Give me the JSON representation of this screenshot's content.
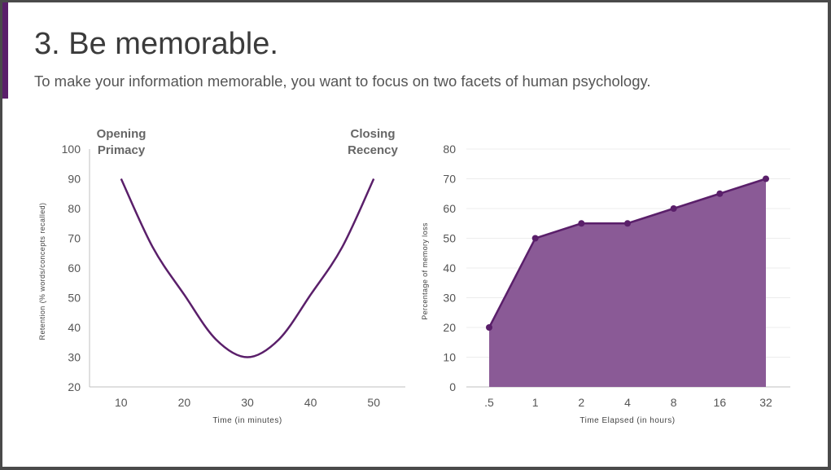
{
  "slide": {
    "title": "3. Be memorable.",
    "subtitle": "To make your information memorable, you want to focus on two facets of human psychology."
  },
  "colors": {
    "accent": "#5a1f6a",
    "line": "#5a1f6a",
    "area_fill": "#8a5a96",
    "axis": "#bfbfbf",
    "grid": "#ececec",
    "tick_text": "#555555",
    "background": "#ffffff"
  },
  "chart_data": [
    {
      "type": "line",
      "title": "",
      "xlabel": "Time (in minutes)",
      "ylabel": "Retention (% words/concepts recalled)",
      "x": [
        10,
        15,
        20,
        25,
        30,
        35,
        40,
        45,
        50
      ],
      "y": [
        90,
        67,
        51,
        36,
        30,
        36,
        51,
        67,
        90
      ],
      "xticks": [
        "10",
        "20",
        "30",
        "40",
        "50"
      ],
      "xtick_values": [
        10,
        20,
        30,
        40,
        50
      ],
      "yticks": [
        "100",
        "90",
        "80",
        "70",
        "60",
        "50",
        "40",
        "30",
        "20"
      ],
      "ytick_values": [
        100,
        90,
        80,
        70,
        60,
        50,
        40,
        30,
        20
      ],
      "xlim": [
        5,
        55
      ],
      "ylim": [
        20,
        100
      ],
      "smooth": true,
      "grid": false,
      "annotations": [
        {
          "line1": "Opening",
          "line2": "Primacy"
        },
        {
          "line1": "Closing",
          "line2": "Recency"
        }
      ]
    },
    {
      "type": "area",
      "title": "",
      "xlabel": "Time Elapsed (in hours)",
      "ylabel": "Percentage of memory loss",
      "categories": [
        ".5",
        "1",
        "2",
        "4",
        "8",
        "16",
        "32"
      ],
      "values": [
        20,
        50,
        55,
        55,
        60,
        65,
        70
      ],
      "yticks": [
        "80",
        "70",
        "60",
        "50",
        "40",
        "30",
        "20",
        "10",
        "0"
      ],
      "ytick_values": [
        80,
        70,
        60,
        50,
        40,
        30,
        20,
        10,
        0
      ],
      "ylim": [
        0,
        80
      ],
      "grid": true,
      "markers": true
    }
  ]
}
